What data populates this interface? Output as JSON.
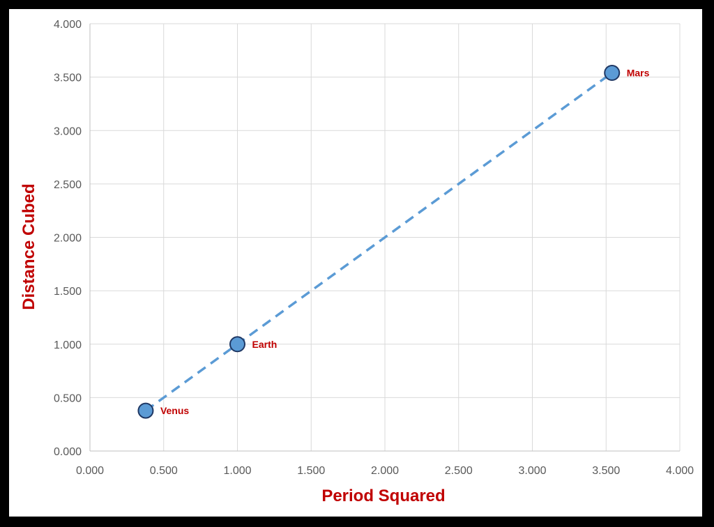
{
  "chart_data": {
    "type": "scatter",
    "title": "",
    "xlabel": "Period Squared",
    "ylabel": "Distance Cubed",
    "xlim": [
      0,
      4
    ],
    "ylim": [
      0,
      4
    ],
    "x_ticks": [
      "0.000",
      "0.500",
      "1.000",
      "1.500",
      "2.000",
      "2.500",
      "3.000",
      "3.500",
      "4.000"
    ],
    "y_ticks": [
      "0.000",
      "0.500",
      "1.000",
      "1.500",
      "2.000",
      "2.500",
      "3.000",
      "3.500",
      "4.000"
    ],
    "grid": true,
    "legend": "none",
    "points": [
      {
        "label": "Venus",
        "x": 0.378,
        "y": 0.378
      },
      {
        "label": "Earth",
        "x": 1.0,
        "y": 1.0
      },
      {
        "label": "Mars",
        "x": 3.54,
        "y": 3.54
      }
    ],
    "trendline": {
      "style": "dashed",
      "from": [
        0.378,
        0.378
      ],
      "to": [
        3.54,
        3.54
      ]
    },
    "colors": {
      "marker_fill": "#5B9BD5",
      "marker_stroke": "#1F3864",
      "trendline": "#5B9BD5",
      "label": "#C00000",
      "axis_title": "#C00000",
      "grid": "#D9D9D9",
      "tick_text": "#595959",
      "frame": "#000000"
    }
  }
}
